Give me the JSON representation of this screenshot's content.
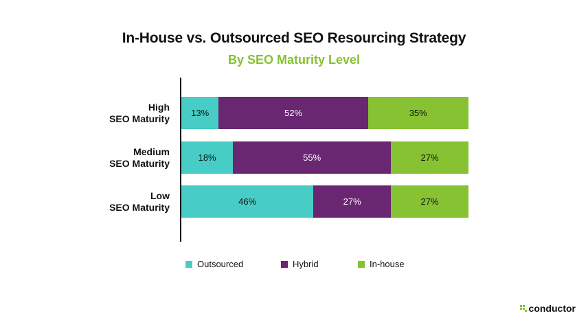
{
  "chart_data": {
    "type": "bar",
    "orientation": "horizontal",
    "stacked": true,
    "title": "In-House vs. Outsourced SEO Resourcing Strategy",
    "subtitle": "By SEO Maturity Level",
    "categories": [
      [
        "High",
        "SEO Maturity"
      ],
      [
        "Medium",
        "SEO Maturity"
      ],
      [
        "Low",
        "SEO Maturity"
      ]
    ],
    "series": [
      {
        "name": "Outsourced",
        "color": "#47cdc5",
        "values": [
          13,
          18,
          46
        ],
        "labels": [
          "13%",
          "18%",
          "46%"
        ],
        "label_color": "#111111"
      },
      {
        "name": "Hybrid",
        "color": "#692671",
        "values": [
          52,
          55,
          27
        ],
        "labels": [
          "52%",
          "55%",
          "27%"
        ],
        "label_color": "#ffffff"
      },
      {
        "name": "In-house",
        "color": "#86c232",
        "values": [
          35,
          27,
          27
        ],
        "labels": [
          "35%",
          "27%",
          "27%"
        ],
        "label_color": "#111111"
      }
    ],
    "xlim": [
      0,
      100
    ],
    "legend_position": "bottom",
    "grid": false
  },
  "brand": {
    "name": "conductor",
    "icon": "conductor-logo-icon",
    "color": "#86c232"
  }
}
